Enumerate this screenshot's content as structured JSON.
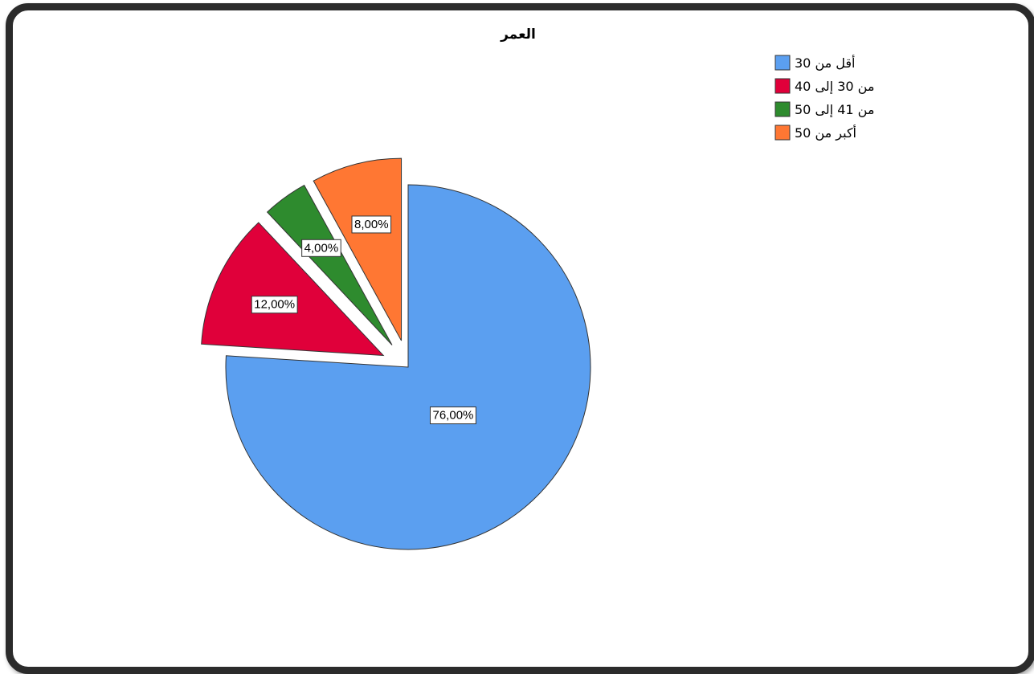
{
  "chart_data": {
    "type": "pie",
    "title": "العمر",
    "categories": [
      "أقل من 30",
      "من 30 إلى 40",
      "من 41 إلى 50",
      "أكبر من 50"
    ],
    "values": [
      76.0,
      12.0,
      4.0,
      8.0
    ],
    "data_labels": [
      "76,00%",
      "12,00%",
      "4,00%",
      "8,00%"
    ],
    "colors": [
      "#5b9ff0",
      "#e0003a",
      "#2e8b2e",
      "#ff7733"
    ],
    "exploded": [
      false,
      true,
      true,
      true
    ],
    "legend_placement": "top-right",
    "start_angle": "12 o'clock",
    "direction": "clockwise"
  }
}
